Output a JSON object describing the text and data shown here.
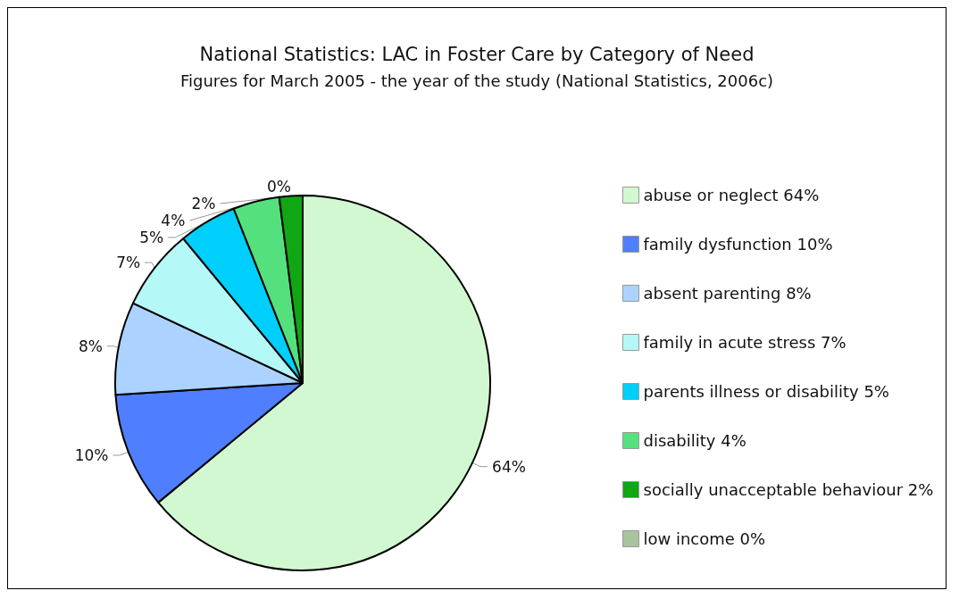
{
  "chart_data": {
    "type": "pie",
    "title": "National Statistics: LAC in Foster Care by Category of Need",
    "subtitle": "Figures for March 2005 - the year of the study (National Statistics, 2006c)",
    "categories": [
      "abuse or neglect 64%",
      "family dysfunction 10%",
      "absent parenting 8%",
      "family in acute stress 7%",
      "parents illness or disability 5%",
      "disability 4%",
      "socially unacceptable behaviour 2%",
      "low income 0%"
    ],
    "values": [
      64,
      10,
      8,
      7,
      5,
      4,
      2,
      0
    ],
    "value_labels": [
      "64%",
      "10%",
      "8%",
      "7%",
      "5%",
      "4%",
      "2%",
      "0%"
    ],
    "colors": [
      "#d2f8d2",
      "#4f7fff",
      "#acd3ff",
      "#b4f8f8",
      "#00cffc",
      "#55e07e",
      "#10a614",
      "#a8c49c"
    ],
    "legend": "right"
  }
}
